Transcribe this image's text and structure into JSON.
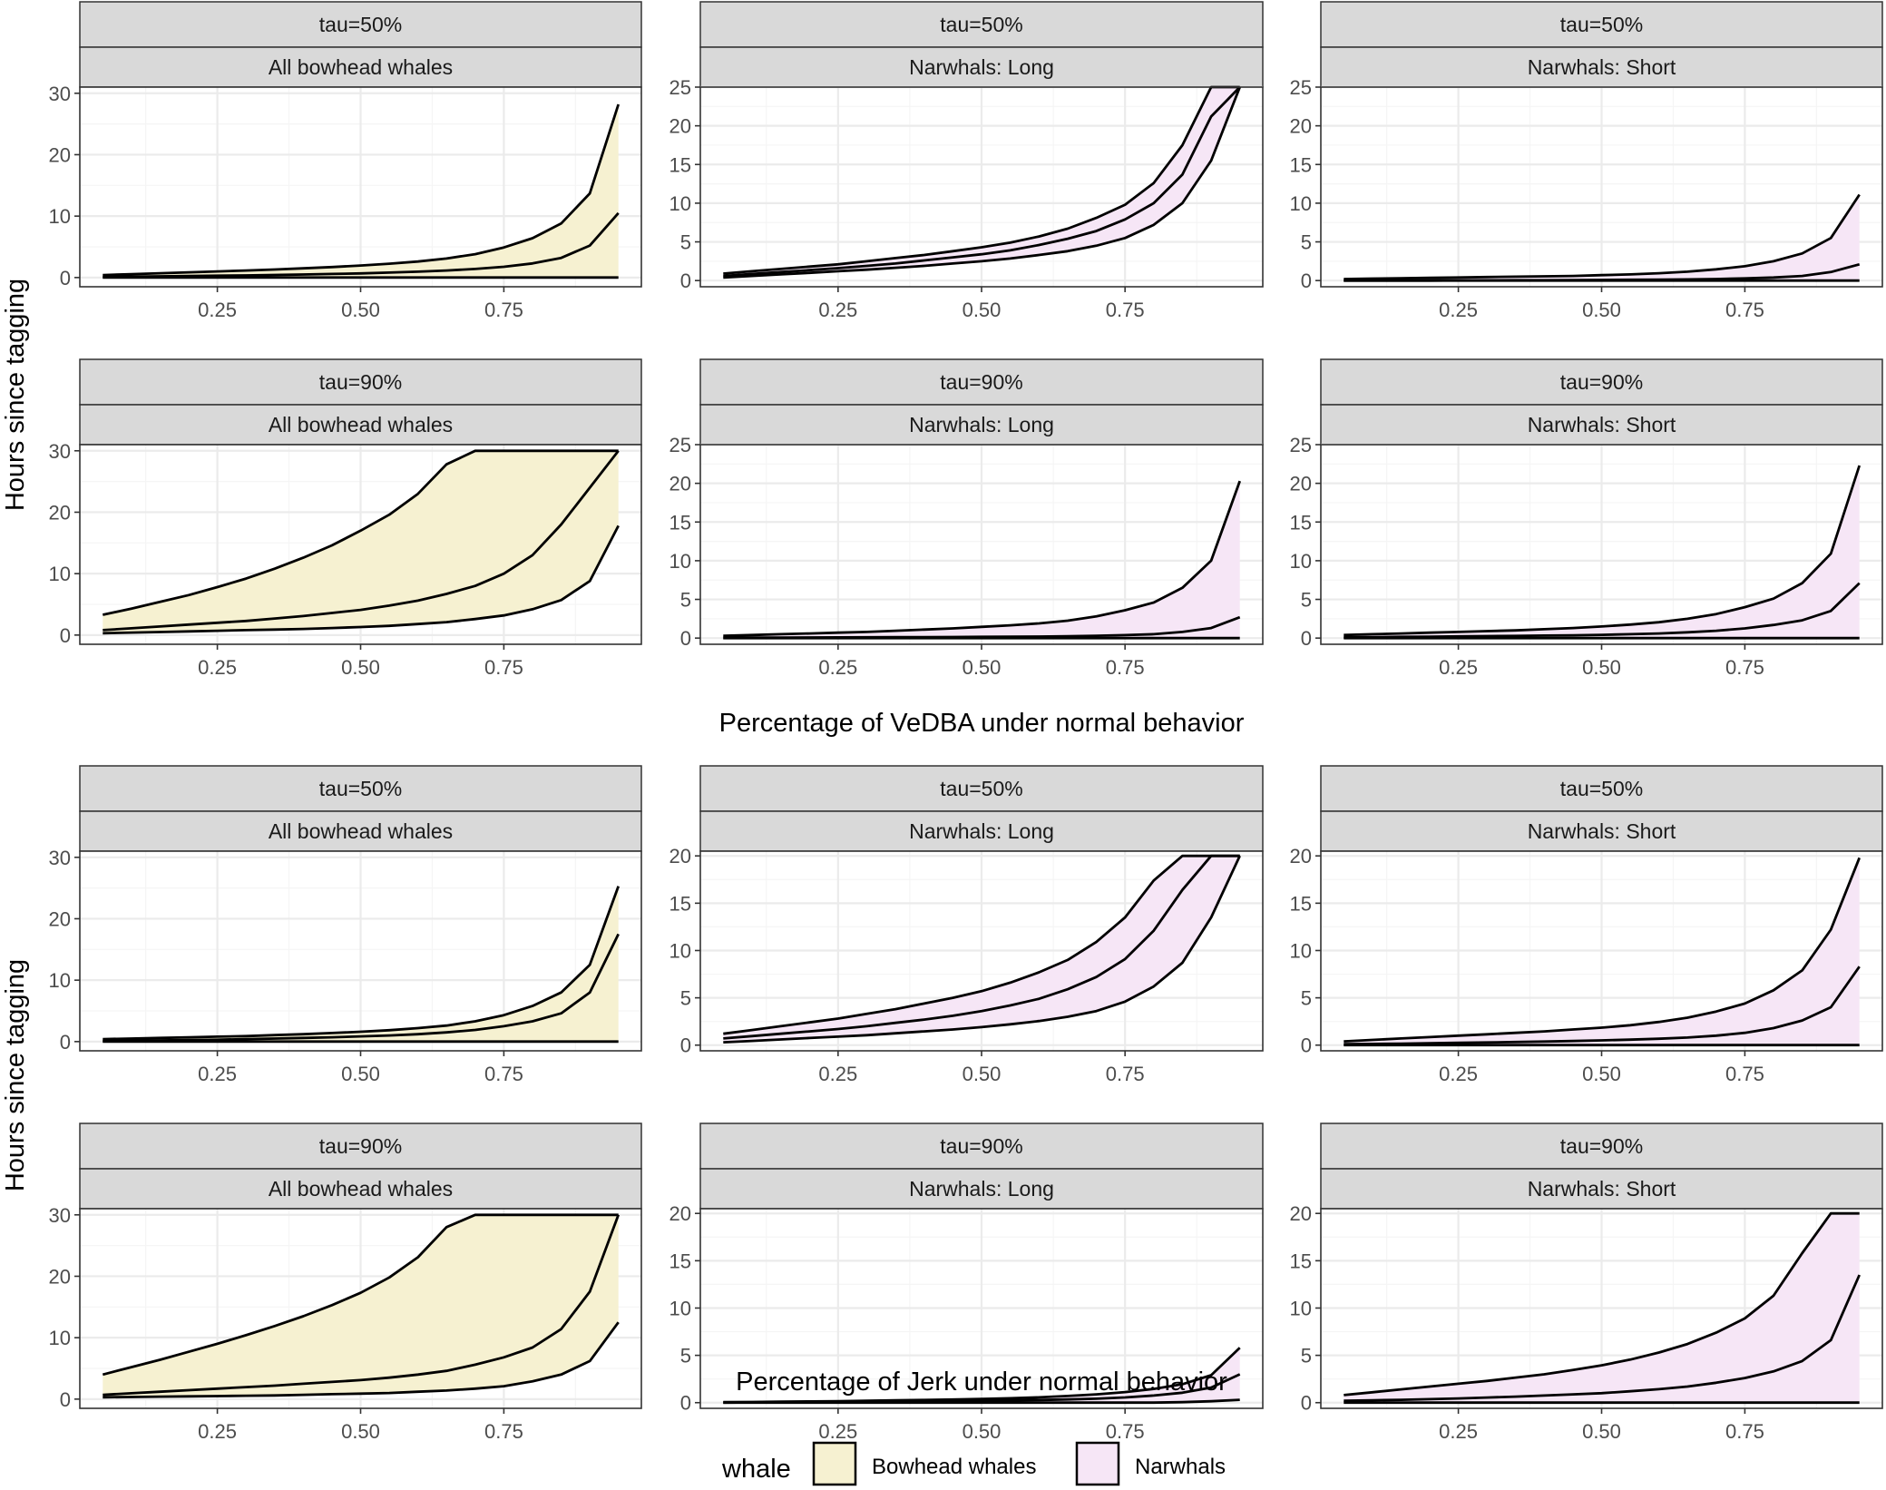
{
  "chart_data": [
    {
      "group": "VeDBA",
      "type": "area",
      "xlabel": "Percentage of VeDBA under normal behavior",
      "ylabel": "Hours since tagging",
      "x_ticks": [
        0.25,
        0.5,
        0.75
      ],
      "x_tick_labels": [
        "0.25",
        "0.50",
        "0.75"
      ],
      "x": [
        0.05,
        0.1,
        0.15,
        0.2,
        0.25,
        0.3,
        0.35,
        0.4,
        0.45,
        0.5,
        0.55,
        0.6,
        0.65,
        0.7,
        0.75,
        0.8,
        0.85,
        0.9,
        0.95
      ],
      "xlim": [
        0.01,
        0.99
      ],
      "panels": [
        {
          "tau": "tau=50%",
          "subset": "All bowhead whales",
          "whale": "Bowhead whales",
          "ylim": [
            -1.5,
            31
          ],
          "y_ticks": [
            0,
            10,
            20,
            30
          ],
          "lower": [
            0,
            0,
            0,
            0,
            0,
            0,
            0,
            0,
            0,
            0,
            0,
            0,
            0,
            0,
            0,
            0,
            0,
            0,
            0
          ],
          "median": [
            0.1,
            0.15,
            0.2,
            0.25,
            0.3,
            0.35,
            0.42,
            0.5,
            0.58,
            0.67,
            0.8,
            0.95,
            1.15,
            1.4,
            1.75,
            2.3,
            3.2,
            5.2,
            10.5
          ],
          "upper": [
            0.4,
            0.55,
            0.7,
            0.85,
            1.0,
            1.15,
            1.3,
            1.5,
            1.7,
            1.95,
            2.25,
            2.6,
            3.1,
            3.8,
            4.9,
            6.4,
            8.8,
            13.7,
            28.2
          ]
        },
        {
          "tau": "tau=50%",
          "subset": "Narwhals: Long",
          "whale": "Narwhals",
          "ylim": [
            -0.8,
            25
          ],
          "y_ticks": [
            0,
            5,
            10,
            15,
            20,
            25
          ],
          "lower": [
            0.4,
            0.6,
            0.8,
            1.0,
            1.2,
            1.4,
            1.65,
            1.9,
            2.2,
            2.5,
            2.85,
            3.3,
            3.8,
            4.5,
            5.5,
            7.2,
            10.0,
            15.5,
            25
          ],
          "median": [
            0.6,
            0.85,
            1.1,
            1.35,
            1.6,
            1.9,
            2.2,
            2.6,
            3.0,
            3.4,
            3.9,
            4.6,
            5.4,
            6.4,
            7.9,
            10.0,
            13.7,
            21.2,
            25
          ],
          "upper": [
            0.9,
            1.2,
            1.5,
            1.8,
            2.1,
            2.5,
            2.9,
            3.3,
            3.8,
            4.3,
            4.9,
            5.7,
            6.7,
            8.1,
            9.8,
            12.6,
            17.5,
            25,
            25
          ]
        },
        {
          "tau": "tau=50%",
          "subset": "Narwhals: Short",
          "whale": "Narwhals",
          "ylim": [
            -0.8,
            25
          ],
          "y_ticks": [
            0,
            5,
            10,
            15,
            20,
            25
          ],
          "lower": [
            0,
            0,
            0,
            0,
            0,
            0,
            0,
            0,
            0,
            0,
            0,
            0,
            0,
            0,
            0,
            0,
            0,
            0,
            0
          ],
          "median": [
            0,
            0,
            0,
            0,
            0.02,
            0.03,
            0.04,
            0.05,
            0.06,
            0.08,
            0.1,
            0.12,
            0.15,
            0.2,
            0.28,
            0.4,
            0.6,
            1.1,
            2.1
          ],
          "upper": [
            0.2,
            0.25,
            0.3,
            0.35,
            0.4,
            0.45,
            0.5,
            0.55,
            0.6,
            0.7,
            0.8,
            0.95,
            1.15,
            1.45,
            1.85,
            2.5,
            3.5,
            5.5,
            11.1
          ]
        },
        {
          "tau": "tau=90%",
          "subset": "All bowhead whales",
          "whale": "Bowhead whales",
          "ylim": [
            -1.5,
            31
          ],
          "y_ticks": [
            0,
            10,
            20,
            30
          ],
          "lower": [
            0.3,
            0.4,
            0.5,
            0.6,
            0.7,
            0.8,
            0.9,
            1.0,
            1.15,
            1.3,
            1.5,
            1.8,
            2.1,
            2.6,
            3.2,
            4.2,
            5.7,
            8.8,
            17.8
          ],
          "median": [
            0.8,
            1.1,
            1.4,
            1.7,
            2.0,
            2.3,
            2.7,
            3.1,
            3.6,
            4.1,
            4.8,
            5.6,
            6.7,
            8.0,
            10.0,
            13.0,
            18.0,
            24.0,
            30
          ],
          "upper": [
            3.3,
            4.3,
            5.4,
            6.5,
            7.8,
            9.2,
            10.8,
            12.6,
            14.6,
            17.0,
            19.6,
            23.0,
            27.8,
            30,
            30,
            30,
            30,
            30,
            30
          ]
        },
        {
          "tau": "tau=90%",
          "subset": "Narwhals: Long",
          "whale": "Narwhals",
          "ylim": [
            -0.8,
            25
          ],
          "y_ticks": [
            0,
            5,
            10,
            15,
            20,
            25
          ],
          "lower": [
            0,
            0,
            0,
            0,
            0,
            0,
            0,
            0,
            0,
            0,
            0,
            0,
            0,
            0,
            0,
            0,
            0,
            0,
            0
          ],
          "median": [
            0.05,
            0.06,
            0.07,
            0.08,
            0.09,
            0.1,
            0.11,
            0.12,
            0.14,
            0.16,
            0.18,
            0.2,
            0.24,
            0.3,
            0.38,
            0.5,
            0.8,
            1.3,
            2.7
          ],
          "upper": [
            0.3,
            0.4,
            0.5,
            0.6,
            0.7,
            0.8,
            0.95,
            1.1,
            1.25,
            1.45,
            1.65,
            1.9,
            2.25,
            2.8,
            3.6,
            4.6,
            6.5,
            10.0,
            20.3
          ]
        },
        {
          "tau": "tau=90%",
          "subset": "Narwhals: Short",
          "whale": "Narwhals",
          "ylim": [
            -0.8,
            25
          ],
          "y_ticks": [
            0,
            5,
            10,
            15,
            20,
            25
          ],
          "lower": [
            0,
            0,
            0,
            0,
            0,
            0,
            0,
            0,
            0,
            0,
            0,
            0,
            0,
            0,
            0,
            0,
            0,
            0,
            0
          ],
          "median": [
            0.1,
            0.13,
            0.16,
            0.19,
            0.22,
            0.25,
            0.28,
            0.32,
            0.36,
            0.42,
            0.5,
            0.6,
            0.75,
            0.95,
            1.25,
            1.7,
            2.3,
            3.5,
            7.1
          ],
          "upper": [
            0.4,
            0.5,
            0.6,
            0.7,
            0.8,
            0.9,
            1.0,
            1.15,
            1.3,
            1.5,
            1.75,
            2.05,
            2.5,
            3.1,
            4.0,
            5.1,
            7.1,
            10.9,
            22.3
          ]
        }
      ]
    },
    {
      "group": "Jerk",
      "type": "area",
      "xlabel": "Percentage of Jerk under normal behavior",
      "ylabel": "Hours since tagging",
      "x_ticks": [
        0.25,
        0.5,
        0.75
      ],
      "x_tick_labels": [
        "0.25",
        "0.50",
        "0.75"
      ],
      "x": [
        0.05,
        0.1,
        0.15,
        0.2,
        0.25,
        0.3,
        0.35,
        0.4,
        0.45,
        0.5,
        0.55,
        0.6,
        0.65,
        0.7,
        0.75,
        0.8,
        0.85,
        0.9,
        0.95
      ],
      "xlim": [
        0.01,
        0.99
      ],
      "panels": [
        {
          "tau": "tau=50%",
          "subset": "All bowhead whales",
          "whale": "Bowhead whales",
          "ylim": [
            -1.5,
            31
          ],
          "y_ticks": [
            0,
            10,
            20,
            30
          ],
          "lower": [
            0,
            0,
            0,
            0,
            0,
            0,
            0,
            0,
            0,
            0,
            0,
            0,
            0,
            0,
            0,
            0,
            0,
            0,
            0
          ],
          "median": [
            0.1,
            0.15,
            0.2,
            0.25,
            0.3,
            0.4,
            0.5,
            0.6,
            0.7,
            0.85,
            1.0,
            1.2,
            1.5,
            1.9,
            2.5,
            3.3,
            4.6,
            8.0,
            17.5
          ],
          "upper": [
            0.4,
            0.5,
            0.6,
            0.7,
            0.8,
            0.9,
            1.05,
            1.2,
            1.4,
            1.6,
            1.85,
            2.2,
            2.6,
            3.3,
            4.3,
            5.8,
            8.0,
            12.5,
            25.3
          ]
        },
        {
          "tau": "tau=50%",
          "subset": "Narwhals: Long",
          "whale": "Narwhals",
          "ylim": [
            -0.6,
            20.5
          ],
          "y_ticks": [
            0,
            5,
            10,
            15,
            20
          ],
          "lower": [
            0.3,
            0.45,
            0.6,
            0.75,
            0.9,
            1.05,
            1.25,
            1.45,
            1.65,
            1.9,
            2.2,
            2.55,
            3.0,
            3.6,
            4.6,
            6.2,
            8.7,
            13.5,
            20
          ],
          "median": [
            0.7,
            0.95,
            1.2,
            1.45,
            1.7,
            2.0,
            2.35,
            2.7,
            3.1,
            3.6,
            4.2,
            4.9,
            5.9,
            7.2,
            9.1,
            12.1,
            16.4,
            20,
            20
          ],
          "upper": [
            1.2,
            1.6,
            2.0,
            2.4,
            2.8,
            3.3,
            3.8,
            4.4,
            5.0,
            5.7,
            6.6,
            7.7,
            9.0,
            10.9,
            13.5,
            17.4,
            20,
            20,
            20
          ]
        },
        {
          "tau": "tau=50%",
          "subset": "Narwhals: Short",
          "whale": "Narwhals",
          "ylim": [
            -0.6,
            20.5
          ],
          "y_ticks": [
            0,
            5,
            10,
            15,
            20
          ],
          "lower": [
            0,
            0,
            0,
            0,
            0,
            0,
            0,
            0,
            0,
            0,
            0,
            0,
            0,
            0,
            0,
            0,
            0,
            0,
            0
          ],
          "median": [
            0.1,
            0.13,
            0.16,
            0.2,
            0.24,
            0.28,
            0.33,
            0.38,
            0.44,
            0.5,
            0.58,
            0.68,
            0.8,
            1.0,
            1.3,
            1.8,
            2.6,
            4.0,
            8.3
          ],
          "upper": [
            0.4,
            0.55,
            0.7,
            0.85,
            1.0,
            1.15,
            1.3,
            1.45,
            1.65,
            1.85,
            2.1,
            2.45,
            2.9,
            3.55,
            4.4,
            5.8,
            7.9,
            12.2,
            19.8
          ]
        },
        {
          "tau": "tau=90%",
          "subset": "All bowhead whales",
          "whale": "Bowhead whales",
          "ylim": [
            -1.5,
            31
          ],
          "y_ticks": [
            0,
            10,
            20,
            30
          ],
          "lower": [
            0.3,
            0.35,
            0.4,
            0.45,
            0.5,
            0.55,
            0.6,
            0.7,
            0.8,
            0.9,
            1.0,
            1.2,
            1.4,
            1.7,
            2.1,
            2.9,
            4.0,
            6.2,
            12.5
          ],
          "median": [
            0.7,
            0.95,
            1.2,
            1.45,
            1.7,
            1.95,
            2.2,
            2.5,
            2.8,
            3.1,
            3.5,
            4.0,
            4.6,
            5.6,
            6.8,
            8.4,
            11.4,
            17.5,
            30
          ],
          "upper": [
            4.0,
            5.2,
            6.4,
            7.7,
            9.0,
            10.4,
            11.9,
            13.5,
            15.3,
            17.3,
            19.8,
            23.1,
            28.0,
            30,
            30,
            30,
            30,
            30,
            30
          ]
        },
        {
          "tau": "tau=90%",
          "subset": "Narwhals: Long",
          "whale": "Narwhals",
          "ylim": [
            -0.6,
            20.5
          ],
          "y_ticks": [
            0,
            5,
            10,
            15,
            20
          ],
          "lower": [
            0,
            0,
            0,
            0,
            0,
            0,
            0,
            0,
            0,
            0,
            0,
            0,
            0,
            0,
            0,
            0,
            0.05,
            0.15,
            0.3
          ],
          "median": [
            0,
            0.02,
            0.04,
            0.06,
            0.08,
            0.1,
            0.12,
            0.14,
            0.17,
            0.2,
            0.24,
            0.28,
            0.34,
            0.42,
            0.55,
            0.75,
            1.05,
            1.6,
            3.0
          ],
          "upper": [
            0.05,
            0.07,
            0.1,
            0.13,
            0.16,
            0.2,
            0.24,
            0.28,
            0.33,
            0.39,
            0.46,
            0.56,
            0.7,
            0.88,
            1.12,
            1.45,
            1.95,
            2.9,
            5.8
          ]
        },
        {
          "tau": "tau=90%",
          "subset": "Narwhals: Short",
          "whale": "Narwhals",
          "ylim": [
            -0.6,
            20.5
          ],
          "y_ticks": [
            0,
            5,
            10,
            15,
            20
          ],
          "lower": [
            0,
            0,
            0,
            0,
            0,
            0,
            0,
            0,
            0,
            0,
            0,
            0,
            0,
            0,
            0,
            0,
            0,
            0,
            0
          ],
          "median": [
            0.2,
            0.25,
            0.3,
            0.37,
            0.45,
            0.54,
            0.64,
            0.75,
            0.88,
            1.0,
            1.2,
            1.42,
            1.7,
            2.1,
            2.6,
            3.3,
            4.4,
            6.6,
            13.5
          ],
          "upper": [
            0.8,
            1.1,
            1.4,
            1.7,
            2.0,
            2.3,
            2.65,
            3.0,
            3.45,
            3.95,
            4.55,
            5.3,
            6.2,
            7.4,
            8.9,
            11.3,
            15.8,
            20,
            20
          ]
        }
      ]
    }
  ],
  "legend": {
    "title": "whale",
    "items": [
      {
        "label": "Bowhead whales",
        "color": "#f6f1d1"
      },
      {
        "label": "Narwhals",
        "color": "#f6e6f6"
      }
    ]
  },
  "colors": {
    "strip_bg": "#d9d9d9",
    "grid_major": "#ebebeb",
    "grid_minor": "#f5f5f5",
    "panel_border": "#333333",
    "line": "#000000"
  }
}
